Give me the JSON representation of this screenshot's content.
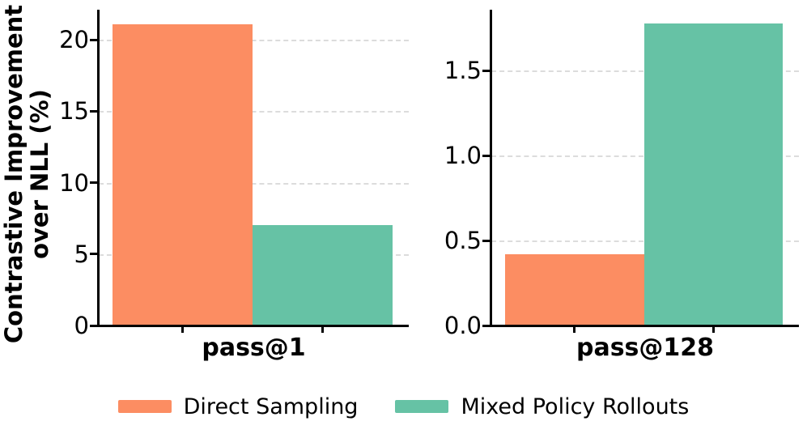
{
  "figure": {
    "background": "#ffffff",
    "ylabel_line1": "Contrastive Improvement",
    "ylabel_line2": "over NLL (%)"
  },
  "chart_data": [
    {
      "type": "bar",
      "categories": [
        "pass@1"
      ],
      "series": [
        {
          "name": "Direct Sampling",
          "values": [
            21.1
          ],
          "color": "#FC8D62"
        },
        {
          "name": "Mixed Policy Rollouts",
          "values": [
            7.0
          ],
          "color": "#66C2A5"
        }
      ],
      "ylabel": "Contrastive Improvement over NLL (%)",
      "xlabel": "pass@1",
      "ylim": [
        0,
        22.1
      ],
      "yticks": [
        0,
        5,
        10,
        15,
        20
      ],
      "ytick_labels": [
        "0",
        "5",
        "10",
        "15",
        "20"
      ],
      "grid": "horizontal-dashed",
      "legend_position": "figure-bottom"
    },
    {
      "type": "bar",
      "categories": [
        "pass@128"
      ],
      "series": [
        {
          "name": "Direct Sampling",
          "values": [
            0.42
          ],
          "color": "#FC8D62"
        },
        {
          "name": "Mixed Policy Rollouts",
          "values": [
            1.78
          ],
          "color": "#66C2A5"
        }
      ],
      "ylabel": "",
      "xlabel": "pass@128",
      "ylim": [
        0,
        1.86
      ],
      "yticks": [
        0,
        0.5,
        1.0,
        1.5
      ],
      "ytick_labels": [
        "0.0",
        "0.5",
        "1.0",
        "1.5"
      ],
      "grid": "horizontal-dashed",
      "legend_position": "figure-bottom"
    }
  ],
  "legend": {
    "items": [
      {
        "label": "Direct Sampling",
        "color": "#FC8D62"
      },
      {
        "label": "Mixed Policy Rollouts",
        "color": "#66C2A5"
      }
    ]
  },
  "colors": {
    "grid": "#dcdcdc",
    "spine": "#000000",
    "text": "#000000",
    "orange": "#FC8D62",
    "teal": "#66C2A5"
  }
}
